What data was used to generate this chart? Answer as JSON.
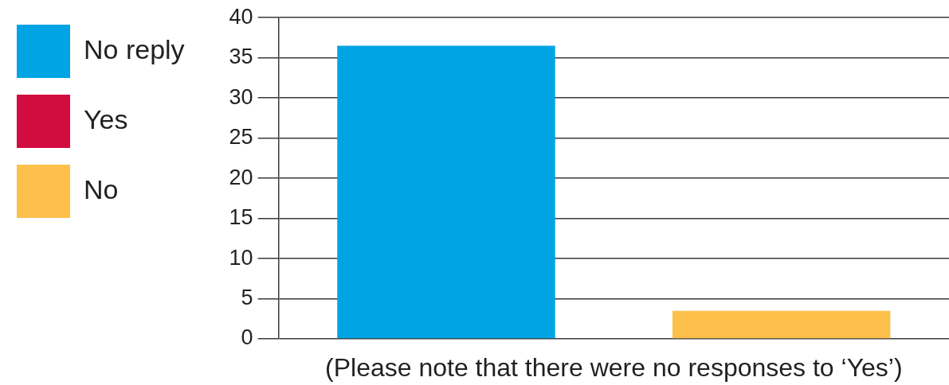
{
  "chart_data": {
    "type": "bar",
    "categories": [
      null,
      null
    ],
    "series": [
      {
        "name": "No reply",
        "color": "#00a3e3",
        "values": [
          36.5,
          null
        ]
      },
      {
        "name": "Yes",
        "color": "#d20c3e",
        "values": [
          null,
          null
        ]
      },
      {
        "name": "No",
        "color": "#fdc04a",
        "values": [
          null,
          3.5
        ]
      }
    ],
    "ylim": [
      0,
      40
    ],
    "yticks": [
      0,
      5,
      10,
      15,
      20,
      25,
      30,
      35,
      40
    ],
    "grid": "y",
    "legend": "left",
    "tick_labels": "y",
    "annotations": [
      "(Please note that there were no responses to ‘Yes’)"
    ]
  }
}
